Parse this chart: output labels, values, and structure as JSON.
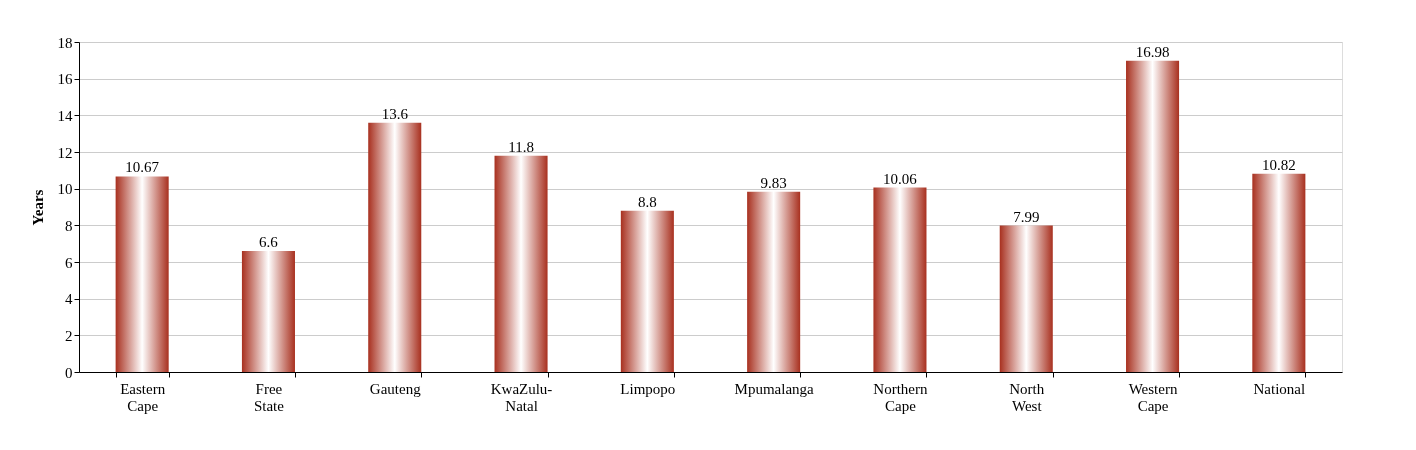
{
  "chart_data": {
    "type": "bar",
    "ylabel": "Years",
    "categories": [
      "Eastern Cape",
      "Free State",
      "Gauteng",
      "KwaZulu-Natal",
      "Limpopo",
      "Mpumalanga",
      "Northern Cape",
      "North West",
      "Western Cape",
      "National"
    ],
    "values": [
      10.67,
      6.6,
      13.6,
      11.8,
      8.8,
      9.83,
      10.06,
      7.99,
      16.98,
      10.82
    ],
    "color": "#a8301f",
    "ylim": [
      0,
      18
    ],
    "yticks": [
      0,
      2,
      4,
      6,
      8,
      10,
      12,
      14,
      16,
      18
    ],
    "grid": "y",
    "data_labels": true
  }
}
